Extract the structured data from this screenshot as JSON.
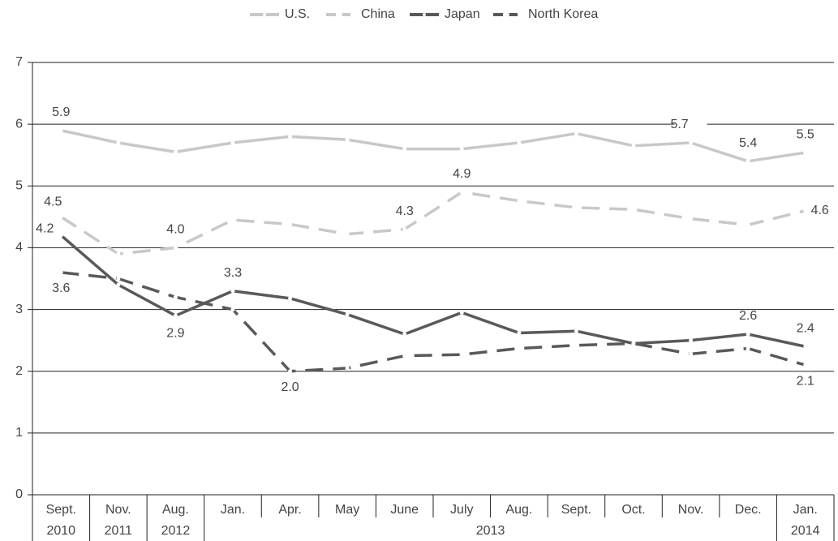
{
  "chart_data": {
    "type": "line",
    "categories": [
      "Sept.",
      "Nov.",
      "Aug.",
      "Jan.",
      "Apr.",
      "May",
      "June",
      "July",
      "Aug.",
      "Sept.",
      "Oct.",
      "Nov.",
      "Dec.",
      "Jan."
    ],
    "years": [
      {
        "label": "2010",
        "span": 1
      },
      {
        "label": "2011",
        "span": 1
      },
      {
        "label": "2012",
        "span": 1
      },
      {
        "label": "2013",
        "span": 10
      },
      {
        "label": "2014",
        "span": 1
      }
    ],
    "series": [
      {
        "name": "U.S.",
        "color": "#c8c8c8",
        "dashed": false,
        "values": [
          5.9,
          5.7,
          5.55,
          5.7,
          5.8,
          5.75,
          5.6,
          5.6,
          5.7,
          5.85,
          5.65,
          5.7,
          5.4,
          5.54
        ],
        "value_labels": [
          "5.9",
          null,
          null,
          null,
          null,
          null,
          null,
          null,
          null,
          null,
          null,
          "5.7",
          "5.4",
          "5.5"
        ]
      },
      {
        "name": "China",
        "color": "#c8c8c8",
        "dashed": true,
        "values": [
          4.5,
          3.9,
          4.0,
          4.45,
          4.38,
          4.22,
          4.3,
          4.9,
          4.76,
          4.65,
          4.62,
          4.47,
          4.37,
          4.6
        ],
        "value_labels": [
          "4.5",
          null,
          "4.0",
          null,
          null,
          null,
          "4.3",
          "4.9",
          null,
          null,
          null,
          null,
          null,
          "4.6"
        ]
      },
      {
        "name": "Japan",
        "color": "#595959",
        "dashed": false,
        "values": [
          4.2,
          3.4,
          2.9,
          3.3,
          3.18,
          2.92,
          2.6,
          2.95,
          2.62,
          2.65,
          2.45,
          2.5,
          2.6,
          2.4
        ],
        "value_labels": [
          "4.2",
          null,
          "2.9",
          "3.3",
          null,
          null,
          null,
          null,
          null,
          null,
          null,
          null,
          "2.6",
          "2.4"
        ]
      },
      {
        "name": "North Korea",
        "color": "#595959",
        "dashed": true,
        "values": [
          3.6,
          3.5,
          3.2,
          3.0,
          2.0,
          2.05,
          2.25,
          2.27,
          2.37,
          2.42,
          2.45,
          2.28,
          2.37,
          2.1
        ],
        "value_labels": [
          "3.6",
          null,
          null,
          null,
          "2.0",
          null,
          null,
          null,
          null,
          null,
          null,
          null,
          null,
          "2.1"
        ]
      }
    ],
    "ylim": [
      0,
      7
    ],
    "yticks": [
      0,
      1,
      2,
      3,
      4,
      5,
      6,
      7
    ],
    "grid": true,
    "legend": "top"
  }
}
